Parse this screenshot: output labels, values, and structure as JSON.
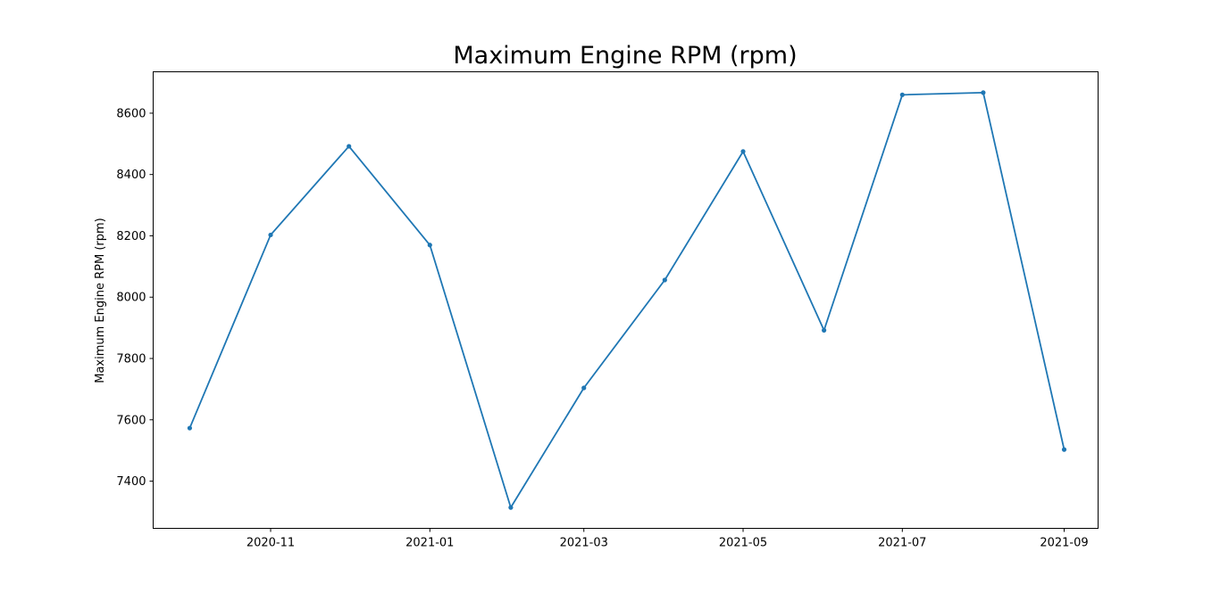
{
  "chart_data": {
    "type": "line",
    "title": "Maximum Engine RPM (rpm)",
    "xlabel": "",
    "ylabel": "Maximum Engine RPM (rpm)",
    "x": [
      "2020-10-01",
      "2020-11-01",
      "2020-12-01",
      "2021-01-01",
      "2021-02-01",
      "2021-03-01",
      "2021-04-01",
      "2021-05-01",
      "2021-06-01",
      "2021-07-01",
      "2021-08-01",
      "2021-09-01"
    ],
    "series": [
      {
        "values": [
          7573,
          8203,
          8492,
          8170,
          7314,
          7704,
          8056,
          8475,
          7892,
          8660,
          8667,
          7503
        ]
      }
    ],
    "xticks": [
      "2020-11",
      "2021-01",
      "2021-03",
      "2021-05",
      "2021-07",
      "2021-09"
    ],
    "yticks": [
      7400,
      7600,
      7800,
      8000,
      8200,
      8400,
      8600
    ],
    "xlim": [
      "2020-09-17",
      "2021-09-14"
    ],
    "ylim": [
      7246,
      8735
    ],
    "grid": false,
    "line_color": "#1f77b4",
    "marker": "dot"
  }
}
